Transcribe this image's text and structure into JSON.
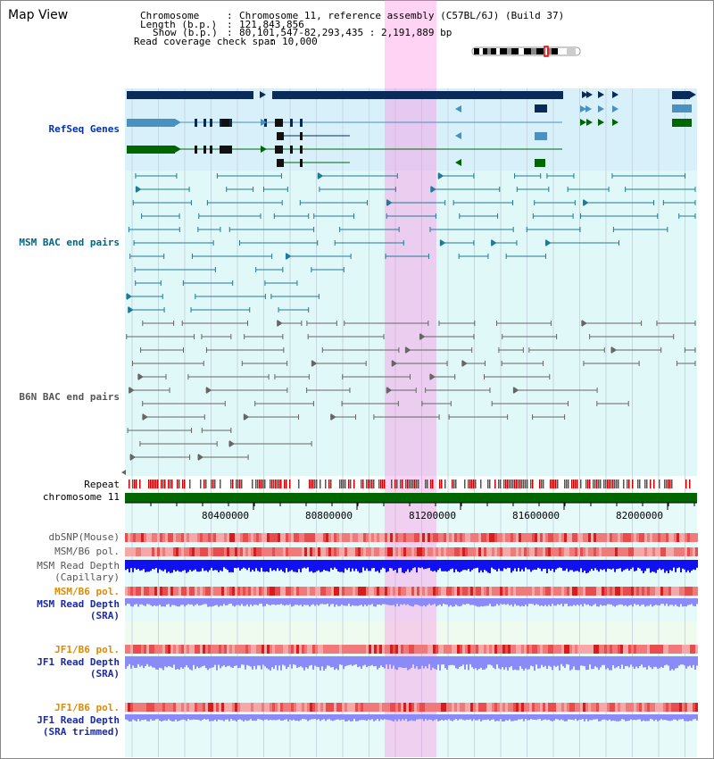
{
  "title": "Map View",
  "info": {
    "chromosome_key": "Chromosome",
    "chromosome_val": "Chromosome 11, reference assembly (C57BL/6J) (Build 37)",
    "length_key": "Length (b.p.)",
    "length_val": "121,843,856",
    "show_key": "Show (b.p.)",
    "show_val": "80,101,547-82,293,435 : 2,191,889 bp",
    "coverage_key": "Read coverage check span",
    "coverage_val": "10,000"
  },
  "tracks": {
    "refseq": "RefSeq Genes",
    "msm_bac": "MSM BAC end pairs",
    "b6n_bac": "B6N BAC end pairs",
    "repeat": "Repeat",
    "chromosome": "chromosome 11",
    "dbsnp": "dbSNP(Mouse)",
    "msm_b6_pol_1": "MSM/B6 pol.",
    "msm_read_depth_cap_1": "MSM Read Depth",
    "msm_read_depth_cap_2": "(Capillary)",
    "msm_b6_pol_2": "MSM/B6 pol.",
    "msm_read_depth_sra_1": "MSM Read Depth",
    "msm_read_depth_sra_2": "(SRA)",
    "jf1_b6_pol_1": "JF1/B6 pol.",
    "jf1_read_depth_1": "JF1 Read Depth",
    "jf1_read_depth_2": "(SRA)",
    "jf1_b6_pol_2": "JF1/B6 pol.",
    "jf1_read_depth_trim_1": "JF1 Read Depth",
    "jf1_read_depth_trim_2": "(SRA trimmed)"
  },
  "axis": {
    "ticks": [
      "80400000",
      "80800000",
      "81200000",
      "81600000",
      "82000000"
    ]
  },
  "colors": {
    "highlight": "#ff80e0",
    "refseq_bg": "#d8f0fa",
    "bac_bg": "#e0f8f8",
    "refseq_dark": "#0a2a5a",
    "refseq_mid": "#4a90c0",
    "refseq_green": "#006600",
    "msm_bac": "#1f7a9a",
    "b6n_bac": "#666666",
    "chromosome": "#006600",
    "pol": "#f06060",
    "depth_cap": "#1010f0",
    "depth_sra": "#8a8af8"
  }
}
